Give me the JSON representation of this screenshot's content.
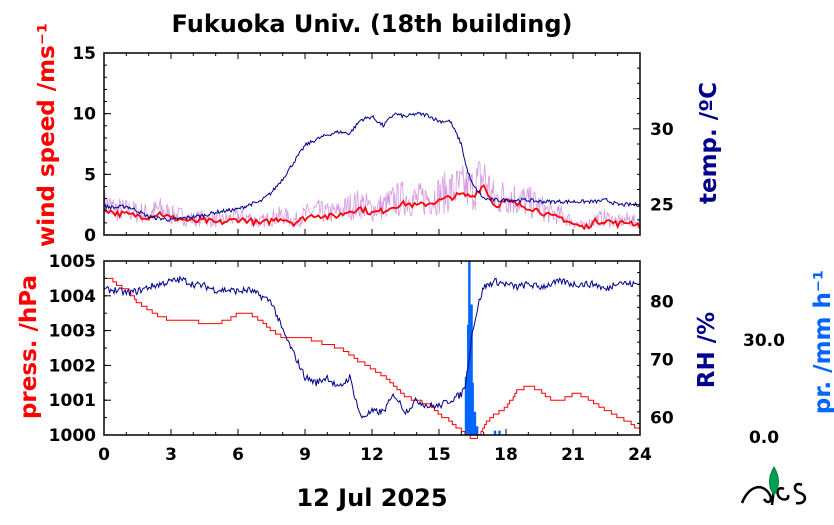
{
  "title": "Fukuoka Univ. (18th building)",
  "date_label": "12 Jul 2025",
  "colors": {
    "red": "#ff0000",
    "navy": "#00008b",
    "blue": "#0066ff",
    "violet": "#cc88dd",
    "logo_green": "#00a050"
  },
  "chart_data": [
    {
      "type": "line",
      "id": "top",
      "xlabel": "",
      "xlim": [
        0,
        24
      ],
      "left_axis": {
        "label": "wind speed /ms⁻¹",
        "color": "#ff0000",
        "ylim": [
          0,
          15
        ],
        "ticks": [
          0,
          5,
          10,
          15
        ]
      },
      "right_axis": {
        "label": "temp. /ºC",
        "color": "#00008b",
        "ylim": [
          23,
          35
        ],
        "ticks": [
          25,
          30
        ]
      },
      "series": [
        {
          "axis": "left",
          "color": "#ff0000",
          "x": [
            0,
            0.5,
            1,
            1.5,
            2,
            2.5,
            3,
            3.5,
            4,
            4.5,
            5,
            5.5,
            6,
            6.5,
            7,
            7.5,
            8,
            8.5,
            9,
            9.5,
            10,
            10.5,
            11,
            11.5,
            12,
            12.5,
            13,
            13.5,
            14,
            14.5,
            15,
            15.5,
            16,
            16.5,
            17,
            17.5,
            18,
            18.5,
            19,
            19.5,
            20,
            20.5,
            21,
            21.5,
            22,
            22.5,
            23,
            23.5,
            24
          ],
          "y": [
            2.2,
            1.8,
            1.7,
            1.6,
            1.5,
            1.8,
            1.4,
            1.3,
            1.1,
            1.2,
            1.0,
            1.1,
            1.3,
            1.2,
            0.9,
            1.2,
            1.4,
            1.0,
            1.4,
            1.7,
            1.5,
            1.6,
            2.0,
            2.2,
            1.8,
            2.0,
            2.4,
            2.6,
            2.4,
            2.6,
            2.8,
            3.1,
            3.3,
            3.2,
            4.1,
            2.4,
            2.8,
            2.5,
            2.3,
            2.0,
            1.5,
            1.4,
            0.9,
            0.6,
            1.1,
            1.2,
            0.9,
            1.1,
            0.8
          ]
        },
        {
          "axis": "right",
          "color": "#00008b",
          "x": [
            0,
            0.5,
            1,
            1.5,
            2,
            2.5,
            3,
            3.5,
            4,
            4.5,
            5,
            5.5,
            6,
            6.5,
            7,
            7.5,
            8,
            8.5,
            9,
            9.5,
            10,
            10.5,
            11,
            11.5,
            12,
            12.5,
            13,
            13.5,
            14,
            14.5,
            15,
            15.5,
            16,
            16.2,
            16.5,
            16.8,
            17,
            17.5,
            18,
            18.5,
            19,
            19.5,
            20,
            20.5,
            21,
            21.5,
            22,
            22.5,
            23,
            23.5,
            24
          ],
          "y": [
            24.9,
            24.8,
            24.9,
            24.6,
            24.2,
            24.1,
            24.0,
            24.1,
            24.2,
            24.3,
            24.5,
            24.6,
            24.7,
            25.0,
            25.2,
            25.8,
            26.7,
            27.8,
            28.9,
            29.3,
            29.6,
            29.8,
            29.7,
            30.6,
            30.8,
            30.2,
            31.0,
            30.8,
            31.0,
            30.9,
            30.5,
            30.5,
            29.0,
            27.6,
            26.3,
            25.8,
            25.4,
            25.3,
            25.3,
            25.3,
            25.3,
            25.2,
            25.2,
            25.2,
            25.2,
            25.2,
            25.2,
            25.3,
            25.0,
            25.0,
            25.0
          ]
        }
      ]
    },
    {
      "type": "line",
      "id": "bottom",
      "xlabel": "",
      "xlim": [
        0,
        24
      ],
      "xticks": [
        0,
        3,
        6,
        9,
        12,
        15,
        18,
        21,
        24
      ],
      "left_axis": {
        "label": "press. /hPa",
        "color": "#ff0000",
        "ylim": [
          1000,
          1005
        ],
        "ticks": [
          1000,
          1001,
          1002,
          1003,
          1004,
          1005
        ]
      },
      "right_axis": {
        "label": "RH /%",
        "color": "#00008b",
        "ylim": [
          57,
          87
        ],
        "ticks": [
          60,
          70,
          80
        ]
      },
      "rain_axis": {
        "label": "pr. /mm h⁻¹",
        "color": "#0066ff",
        "ylim": [
          0,
          60
        ],
        "ticks": [
          "0.0",
          "30.0"
        ]
      },
      "series": [
        {
          "axis": "left",
          "color": "#ff0000",
          "x": [
            0,
            0.3,
            0.6,
            1,
            1.5,
            2,
            2.5,
            3,
            3.5,
            4,
            4.5,
            5,
            5.5,
            6,
            6.5,
            7,
            7.5,
            8,
            8.5,
            9,
            9.5,
            10,
            10.5,
            11,
            11.5,
            12,
            12.5,
            13,
            13.5,
            14,
            14.5,
            15,
            15.5,
            16,
            16.2,
            16.5,
            16.8,
            17,
            17.5,
            18,
            18.5,
            19,
            19.5,
            20,
            20.5,
            21,
            21.5,
            22,
            22.5,
            23,
            23.5,
            24
          ],
          "y": [
            1004.5,
            1004.5,
            1004.3,
            1004.2,
            1003.8,
            1003.6,
            1003.4,
            1003.3,
            1003.3,
            1003.3,
            1003.2,
            1003.2,
            1003.3,
            1003.5,
            1003.5,
            1003.3,
            1003.0,
            1002.8,
            1002.8,
            1002.8,
            1002.7,
            1002.6,
            1002.5,
            1002.3,
            1002.1,
            1001.9,
            1001.7,
            1001.4,
            1001.1,
            1001.0,
            1000.9,
            1000.6,
            1000.4,
            1000.1,
            1000.0,
            999.9,
            1000.0,
            1000.3,
            1000.6,
            1000.8,
            1001.3,
            1001.4,
            1001.3,
            1001.0,
            1001.0,
            1001.2,
            1001.1,
            1000.9,
            1000.7,
            1000.5,
            1000.4,
            1000.1
          ]
        },
        {
          "axis": "right",
          "color": "#00008b",
          "x": [
            0,
            0.5,
            1,
            1.5,
            2,
            2.5,
            3,
            3.5,
            4,
            4.5,
            5,
            5.5,
            6,
            6.5,
            7,
            7.5,
            8,
            8.5,
            9,
            9.5,
            10,
            10.5,
            11,
            11.5,
            12,
            12.5,
            13,
            13.5,
            14,
            14.5,
            15,
            15.5,
            16,
            16.2,
            16.5,
            16.8,
            17,
            17.5,
            18,
            18.5,
            19,
            19.5,
            20,
            20.5,
            21,
            21.5,
            22,
            22.5,
            23,
            23.5,
            24
          ],
          "y": [
            82.0,
            82.0,
            81.5,
            81.8,
            82.5,
            83.0,
            83.5,
            83.8,
            83.0,
            82.7,
            82.0,
            82.0,
            81.8,
            82.0,
            81.0,
            80.0,
            75.0,
            71.0,
            67.0,
            66.0,
            67.0,
            65.0,
            67.0,
            60.0,
            61.0,
            61.0,
            64.0,
            61.0,
            63.0,
            62.0,
            62.0,
            63.0,
            64.0,
            66.0,
            75.0,
            80.0,
            82.5,
            83.5,
            83.0,
            82.5,
            83.0,
            82.5,
            83.0,
            83.5,
            83.0,
            83.0,
            83.0,
            82.0,
            83.5,
            83.0,
            83.0
          ]
        },
        {
          "axis": "rain",
          "type": "bar",
          "color": "#0066ff",
          "x": [
            16.2,
            16.3,
            16.35,
            16.4,
            16.45,
            16.5,
            16.6,
            16.7,
            17.5,
            17.7
          ],
          "y": [
            20,
            38,
            60,
            30,
            45,
            18,
            8,
            3,
            1.5,
            1.5
          ]
        }
      ]
    }
  ]
}
